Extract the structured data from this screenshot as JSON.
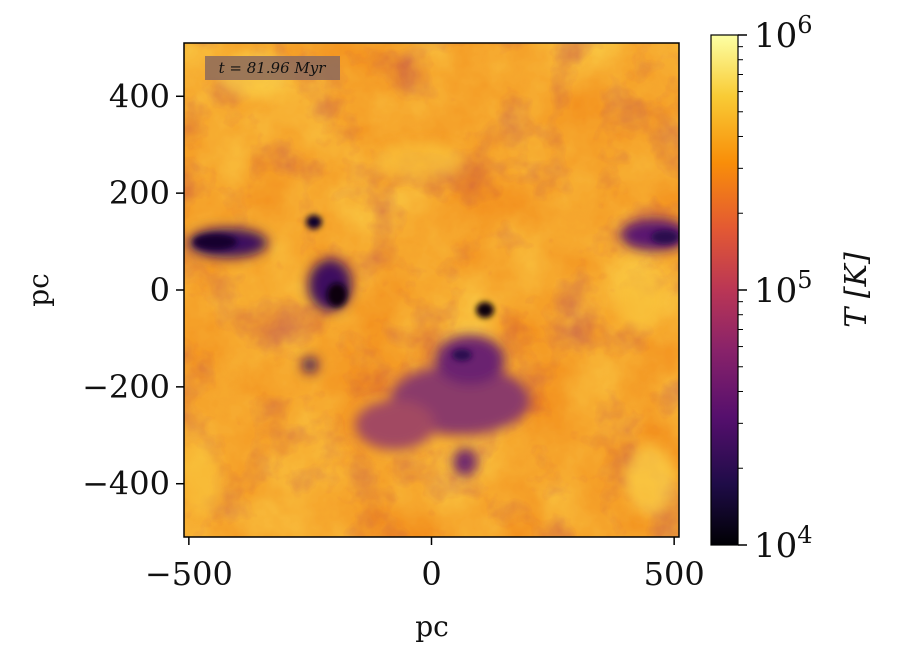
{
  "chart_data": {
    "type": "heatmap",
    "title": "",
    "annotation": "t = 81.96 Myr",
    "xlabel": "pc",
    "ylabel": "pc",
    "xlim": [
      -510,
      510
    ],
    "ylim": [
      -510,
      510
    ],
    "xticks": [
      -500,
      0,
      500
    ],
    "xtick_labels": [
      "−500",
      "0",
      "500"
    ],
    "yticks": [
      400,
      200,
      0,
      -200,
      -400
    ],
    "ytick_labels": [
      "400",
      "200",
      "0",
      "−200",
      "−400"
    ],
    "colorbar": {
      "label": "T [K]",
      "scale": "log",
      "range": [
        10000,
        1000000
      ],
      "major_ticks": [
        {
          "value": 10000,
          "base": "10",
          "exp": "4"
        },
        {
          "value": 100000,
          "base": "10",
          "exp": "5"
        },
        {
          "value": 1000000,
          "base": "10",
          "exp": "6"
        }
      ],
      "colormap": "inferno",
      "colors": [
        "#000004",
        "#1f0c48",
        "#550f6d",
        "#88226a",
        "#ba3655",
        "#e35933",
        "#f98e09",
        "#f9cb35",
        "#fcffa4"
      ]
    },
    "field_description": "2D slice of gas temperature; mostly 3e5-6e5 K (orange) with cold dark-purple clumps near the center and left/right edges",
    "grid": false
  }
}
